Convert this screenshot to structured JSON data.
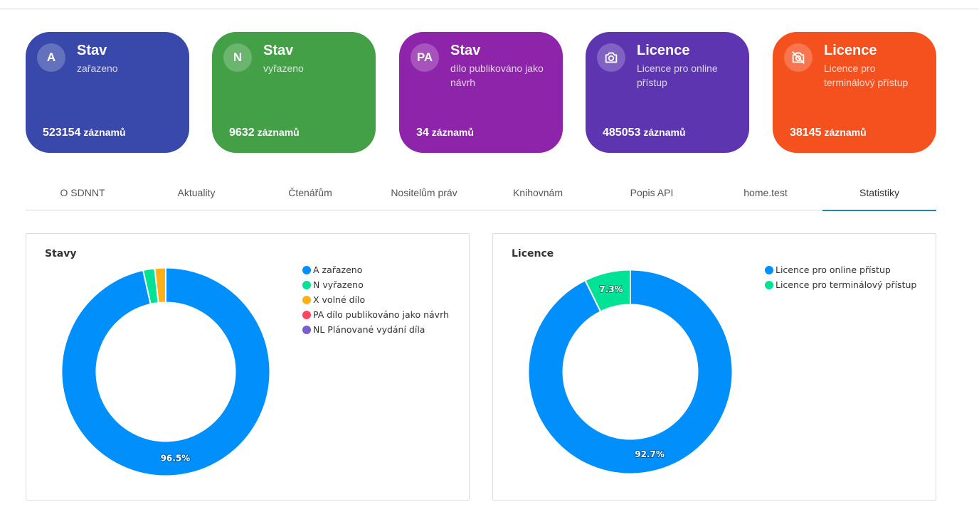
{
  "cards": [
    {
      "badge": "A",
      "title": "Stav",
      "subtitle": "zařazeno",
      "count": "523154",
      "unit": "záznamů",
      "color": "#3949ab"
    },
    {
      "badge": "N",
      "title": "Stav",
      "subtitle": "vyřazeno",
      "count": "9632",
      "unit": "záznamů",
      "color": "#43a047"
    },
    {
      "badge": "PA",
      "title": "Stav",
      "subtitle": "dílo publikováno jako návrh",
      "count": "34",
      "unit": "záznamů",
      "color": "#8e24aa"
    },
    {
      "badge_icon": "camera-icon",
      "title": "Licence",
      "subtitle": "Licence pro online přístup",
      "count": "485053",
      "unit": "záznamů",
      "color": "#5e35b1"
    },
    {
      "badge_icon": "no-camera-icon",
      "title": "Licence",
      "subtitle": "Licence pro terminálový přístup",
      "count": "38145",
      "unit": "záznamů",
      "color": "#f4511e"
    }
  ],
  "tabs": [
    "O SDNNT",
    "Aktuality",
    "Čtenářům",
    "Nositelům práv",
    "Knihovnám",
    "Popis API",
    "home.test",
    "Statistiky"
  ],
  "active_tab": "Statistiky",
  "chart_data": [
    {
      "type": "pie",
      "title": "Stavy",
      "categories": [
        "A zařazeno",
        "N vyřazeno",
        "X volné dílo",
        "PA dílo publikováno jako návrh",
        "NL Plánované vydání díla"
      ],
      "values": [
        96.5,
        1.8,
        1.7,
        0.0,
        0.0
      ],
      "colors": [
        "#008ffb",
        "#00e396",
        "#feb019",
        "#ff4560",
        "#775dd0"
      ],
      "data_labels": [
        "96.5%",
        "",
        "",
        "",
        ""
      ],
      "donut": true,
      "legend": "top-right"
    },
    {
      "type": "pie",
      "title": "Licence",
      "categories": [
        "Licence pro online přístup",
        "Licence pro terminálový přístup"
      ],
      "values": [
        92.7,
        7.3
      ],
      "colors": [
        "#008ffb",
        "#00e396"
      ],
      "data_labels": [
        "92.7%",
        "7.3%"
      ],
      "donut": true,
      "legend": "top-right"
    }
  ]
}
